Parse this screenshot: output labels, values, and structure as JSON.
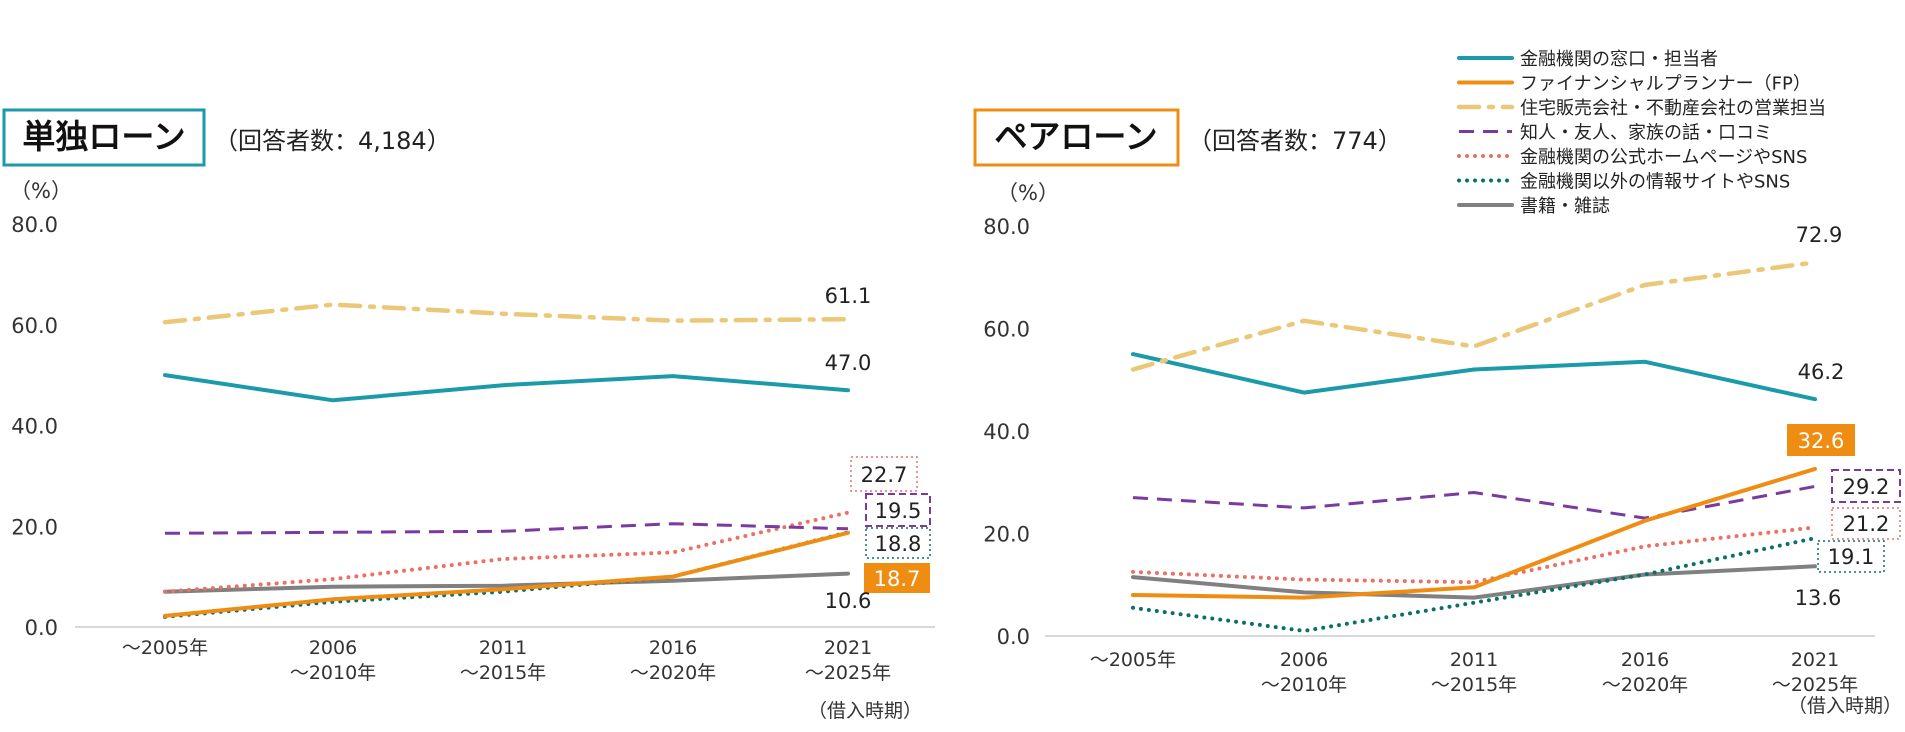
{
  "chart_data": [
    {
      "type": "line",
      "title": "単独ローン",
      "subtitle": "（回答者数：4,184）",
      "ylabel": "（%）",
      "xlabel": "（借入時期）",
      "ylim": [
        0,
        80
      ],
      "yticks": [
        "0.0",
        "20.0",
        "40.0",
        "60.0",
        "80.0"
      ],
      "categories": [
        [
          "～2005年"
        ],
        [
          "2006",
          "～2010年"
        ],
        [
          "2011",
          "～2015年"
        ],
        [
          "2016",
          "～2020年"
        ],
        [
          "2021",
          "～2025年"
        ]
      ],
      "series": [
        {
          "name": "金融機関の窓口・担当者",
          "values": [
            50.0,
            45.0,
            48.0,
            49.8,
            47.0
          ]
        },
        {
          "name": "ファイナンシャルプランナー（FP）",
          "values": [
            2.2,
            5.5,
            7.5,
            10.0,
            18.7
          ]
        },
        {
          "name": "住宅販売会社・不動産会社の営業担当",
          "values": [
            60.5,
            64.0,
            62.2,
            60.8,
            61.1
          ]
        },
        {
          "name": "知人・友人、家族の話・口コミ",
          "values": [
            18.6,
            18.8,
            19.0,
            20.5,
            19.5
          ]
        },
        {
          "name": "金融機関の公式ホームページやSNS",
          "values": [
            7.0,
            9.5,
            13.5,
            14.8,
            22.7
          ]
        },
        {
          "name": "金融機関以外の情報サイトやSNS",
          "values": [
            2.0,
            5.0,
            7.0,
            10.0,
            18.8
          ]
        },
        {
          "name": "書籍・雑誌",
          "values": [
            7.0,
            8.0,
            8.2,
            9.2,
            10.6
          ]
        }
      ],
      "data_labels": [
        {
          "series": 2,
          "text": "61.1"
        },
        {
          "series": 0,
          "text": "47.0"
        },
        {
          "series": 4,
          "text": "22.7"
        },
        {
          "series": 3,
          "text": "19.5"
        },
        {
          "series": 5,
          "text": "18.8"
        },
        {
          "series": 1,
          "text": "18.7"
        },
        {
          "series": 6,
          "text": "10.6"
        }
      ]
    },
    {
      "type": "line",
      "title": "ペアローン",
      "subtitle": "（回答者数：774）",
      "ylabel": "（%）",
      "xlabel": "（借入時期）",
      "ylim": [
        0,
        80
      ],
      "yticks": [
        "0.0",
        "20.0",
        "40.0",
        "60.0",
        "80.0"
      ],
      "categories": [
        [
          "～2005年"
        ],
        [
          "2006",
          "～2010年"
        ],
        [
          "2011",
          "～2015年"
        ],
        [
          "2016",
          "～2020年"
        ],
        [
          "2021",
          "～2025年"
        ]
      ],
      "series": [
        {
          "name": "金融機関の窓口・担当者",
          "values": [
            55.0,
            47.5,
            52.0,
            53.5,
            46.2
          ]
        },
        {
          "name": "ファイナンシャルプランナー（FP）",
          "values": [
            8.0,
            7.5,
            9.5,
            22.5,
            32.6
          ]
        },
        {
          "name": "住宅販売会社・不動産会社の営業担当",
          "values": [
            52.0,
            61.5,
            56.5,
            68.5,
            72.9
          ]
        },
        {
          "name": "知人・友人、家族の話・口コミ",
          "values": [
            27.0,
            25.0,
            28.0,
            23.0,
            29.2
          ]
        },
        {
          "name": "金融機関の公式ホームページやSNS",
          "values": [
            12.5,
            11.0,
            10.5,
            17.5,
            21.2
          ]
        },
        {
          "name": "金融機関以外の情報サイトやSNS",
          "values": [
            5.5,
            1.0,
            6.5,
            12.0,
            19.1
          ]
        },
        {
          "name": "書籍・雑誌",
          "values": [
            11.5,
            8.5,
            7.5,
            12.0,
            13.6
          ]
        }
      ],
      "data_labels": [
        {
          "series": 2,
          "text": "72.9"
        },
        {
          "series": 0,
          "text": "46.2"
        },
        {
          "series": 1,
          "text": "32.6"
        },
        {
          "series": 3,
          "text": "29.2"
        },
        {
          "series": 4,
          "text": "21.2"
        },
        {
          "series": 5,
          "text": "19.1"
        },
        {
          "series": 6,
          "text": "13.6"
        }
      ]
    }
  ],
  "legend": {
    "position": "top-right",
    "items": [
      {
        "label": "金融機関の窓口・担当者",
        "color": "#1b9aaa",
        "style": "solid"
      },
      {
        "label": "ファイナンシャルプランナー（FP）",
        "color": "#ef8d13",
        "style": "solid"
      },
      {
        "label": "住宅販売会社・不動産会社の営業担当",
        "color": "#ebc778",
        "style": "dashdot"
      },
      {
        "label": "知人・友人、家族の話・口コミ",
        "color": "#7a3a9e",
        "style": "dashed"
      },
      {
        "label": "金融機関の公式ホームページやSNS",
        "color": "#ec7063",
        "style": "dotted"
      },
      {
        "label": "金融機関以外の情報サイトやSNS",
        "color": "#0d6e6e",
        "style": "dotted"
      },
      {
        "label": "書籍・雑誌",
        "color": "#808080",
        "style": "solid"
      }
    ]
  },
  "colors": {
    "single_title_border": "#1b9aaa",
    "pair_title_border": "#ef8d13",
    "axis": "#cccccc"
  }
}
